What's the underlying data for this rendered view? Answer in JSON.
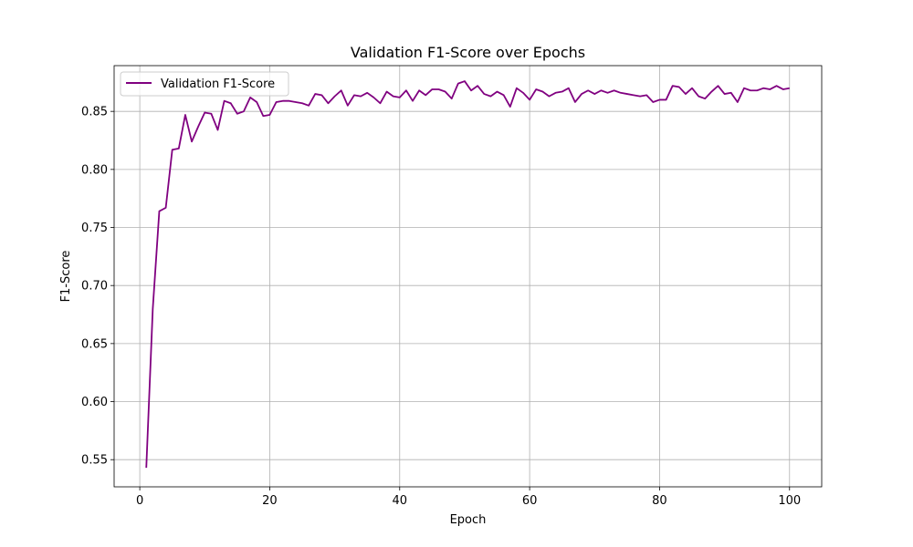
{
  "chart_data": {
    "type": "line",
    "title": "Validation F1-Score over Epochs",
    "xlabel": "Epoch",
    "ylabel": "F1-Score",
    "xlim": [
      -3.95,
      104.95
    ],
    "ylim": [
      0.5266,
      0.8894
    ],
    "xticks": [
      0,
      20,
      40,
      60,
      80,
      100
    ],
    "yticks": [
      0.55,
      0.6,
      0.65,
      0.7,
      0.75,
      0.8,
      0.85
    ],
    "ytick_labels": [
      "0.55",
      "0.60",
      "0.65",
      "0.70",
      "0.75",
      "0.80",
      "0.85"
    ],
    "grid": true,
    "legend_position": "upper-left",
    "series": [
      {
        "name": "Validation F1-Score",
        "color": "#800080",
        "x": [
          1,
          2,
          3,
          4,
          5,
          6,
          7,
          8,
          9,
          10,
          11,
          12,
          13,
          14,
          15,
          16,
          17,
          18,
          19,
          20,
          21,
          22,
          23,
          24,
          25,
          26,
          27,
          28,
          29,
          30,
          31,
          32,
          33,
          34,
          35,
          36,
          37,
          38,
          39,
          40,
          41,
          42,
          43,
          44,
          45,
          46,
          47,
          48,
          49,
          50,
          51,
          52,
          53,
          54,
          55,
          56,
          57,
          58,
          59,
          60,
          61,
          62,
          63,
          64,
          65,
          66,
          67,
          68,
          69,
          70,
          71,
          72,
          73,
          74,
          75,
          76,
          77,
          78,
          79,
          80,
          81,
          82,
          83,
          84,
          85,
          86,
          87,
          88,
          89,
          90,
          91,
          92,
          93,
          94,
          95,
          96,
          97,
          98,
          99,
          100
        ],
        "values": [
          0.543,
          0.68,
          0.764,
          0.767,
          0.817,
          0.818,
          0.847,
          0.824,
          0.837,
          0.849,
          0.848,
          0.834,
          0.859,
          0.857,
          0.848,
          0.85,
          0.862,
          0.858,
          0.846,
          0.847,
          0.858,
          0.859,
          0.859,
          0.858,
          0.857,
          0.855,
          0.865,
          0.864,
          0.857,
          0.863,
          0.868,
          0.855,
          0.864,
          0.863,
          0.866,
          0.862,
          0.857,
          0.867,
          0.863,
          0.862,
          0.868,
          0.859,
          0.868,
          0.864,
          0.869,
          0.869,
          0.867,
          0.861,
          0.874,
          0.876,
          0.868,
          0.872,
          0.865,
          0.863,
          0.867,
          0.864,
          0.854,
          0.87,
          0.866,
          0.86,
          0.869,
          0.867,
          0.863,
          0.866,
          0.867,
          0.87,
          0.858,
          0.865,
          0.868,
          0.865,
          0.868,
          0.866,
          0.868,
          0.866,
          0.865,
          0.864,
          0.863,
          0.864,
          0.858,
          0.86,
          0.86,
          0.872,
          0.871,
          0.865,
          0.87,
          0.863,
          0.861,
          0.867,
          0.872,
          0.865,
          0.866,
          0.858,
          0.87,
          0.868,
          0.868,
          0.87,
          0.869,
          0.872,
          0.869,
          0.87
        ]
      }
    ]
  }
}
